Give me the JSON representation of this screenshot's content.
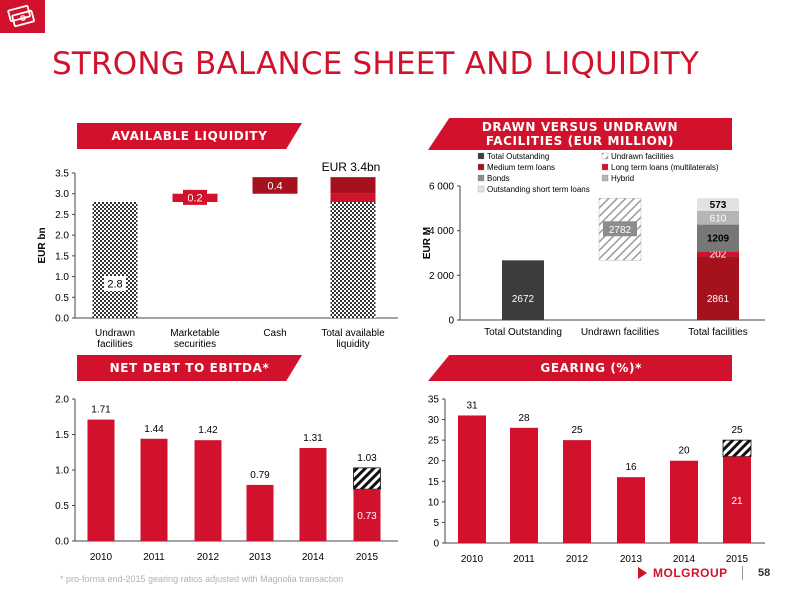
{
  "header": {
    "title": "STRONG BALANCE SHEET AND LIQUIDITY",
    "logo_icon": "money-stack-icon"
  },
  "colors": {
    "red": "#d2112c",
    "dark_red": "#a6111e",
    "charcoal": "#3c3c3c",
    "grey": "#8c8c8c",
    "light_grey": "#d3d3d3",
    "hatch": "#555555"
  },
  "banners": {
    "available_liquidity": "AVAILABLE LIQUIDITY",
    "drawn_undrawn": "DRAWN VERSUS UNDRAWN FACILITIES (EUR MILLION)",
    "net_debt": "NET DEBT TO EBITDA*",
    "gearing": "GEARING (%)*"
  },
  "footer": {
    "note": "* pro-forma end-2015 gearing ratios adjusted with Magnolia transaction",
    "brand": "MOLGROUP",
    "page": "58"
  },
  "chart_data": [
    {
      "type": "bar",
      "id": "available_liquidity",
      "categories": [
        "Undrawn facilities",
        "Marketable securities",
        "Cash",
        "Total available liquidity"
      ],
      "values": [
        2.8,
        0.2,
        0.4,
        3.4
      ],
      "data_labels": [
        "2.8",
        "0.2",
        "0.4",
        "EUR 3.4bn"
      ],
      "ylabel": "EUR bn",
      "ylim": [
        0,
        3.5
      ],
      "yticks": [
        "0.0",
        "0.5",
        "1.0",
        "1.5",
        "2.0",
        "2.5",
        "3.0",
        "3.5"
      ],
      "grid": false
    },
    {
      "type": "bar",
      "id": "drawn_vs_undrawn",
      "categories": [
        "Total Outstanding",
        "Undrawn facilities",
        "Total facilities"
      ],
      "ylabel": "EUR M",
      "ylim": [
        0,
        6000
      ],
      "yticks": [
        "0",
        "2 000",
        "4 000",
        "6 000"
      ],
      "legend": [
        "Total Outstanding",
        "Undrawn facilities",
        "Medium term loans",
        "Long term loans (multilaterals)",
        "Bonds",
        "Hybrid",
        "Outstanding short term loans"
      ],
      "legend_position": "top",
      "series": [
        {
          "name": "Total Outstanding",
          "values": [
            2672,
            null,
            null
          ]
        },
        {
          "name": "Undrawn facilities",
          "values": [
            null,
            2782,
            null
          ]
        },
        {
          "name": "Bonds",
          "values": [
            null,
            null,
            2861
          ]
        },
        {
          "name": "Long term loans (multilaterals)",
          "values": [
            null,
            null,
            202
          ]
        },
        {
          "name": "Medium term loans",
          "values": [
            null,
            null,
            1209
          ]
        },
        {
          "name": "Hybrid",
          "values": [
            null,
            null,
            610
          ]
        },
        {
          "name": "Outstanding short term loans",
          "values": [
            null,
            null,
            573
          ]
        }
      ]
    },
    {
      "type": "bar",
      "id": "net_debt_to_ebitda",
      "categories": [
        "2010",
        "2011",
        "2012",
        "2013",
        "2014",
        "2015"
      ],
      "values": [
        1.71,
        1.44,
        1.42,
        0.79,
        1.31,
        1.03
      ],
      "data_labels": [
        "1.71",
        "1.44",
        "1.42",
        "0.79",
        "1.31",
        "1.03"
      ],
      "adjusted_2015": {
        "value": 0.73,
        "label": "0.73"
      },
      "ylim": [
        0,
        2.0
      ],
      "yticks": [
        "0.0",
        "0.5",
        "1.0",
        "1.5",
        "2.0"
      ],
      "grid": false
    },
    {
      "type": "bar",
      "id": "gearing",
      "categories": [
        "2010",
        "2011",
        "2012",
        "2013",
        "2014",
        "2015"
      ],
      "values": [
        31,
        28,
        25,
        16,
        20,
        25
      ],
      "data_labels": [
        "31",
        "28",
        "25",
        "16",
        "20",
        "25"
      ],
      "adjusted_2015": {
        "value": 21,
        "label": "21"
      },
      "ylim": [
        0,
        35
      ],
      "yticks": [
        "0",
        "5",
        "10",
        "15",
        "20",
        "25",
        "30",
        "35"
      ],
      "grid": false
    }
  ]
}
